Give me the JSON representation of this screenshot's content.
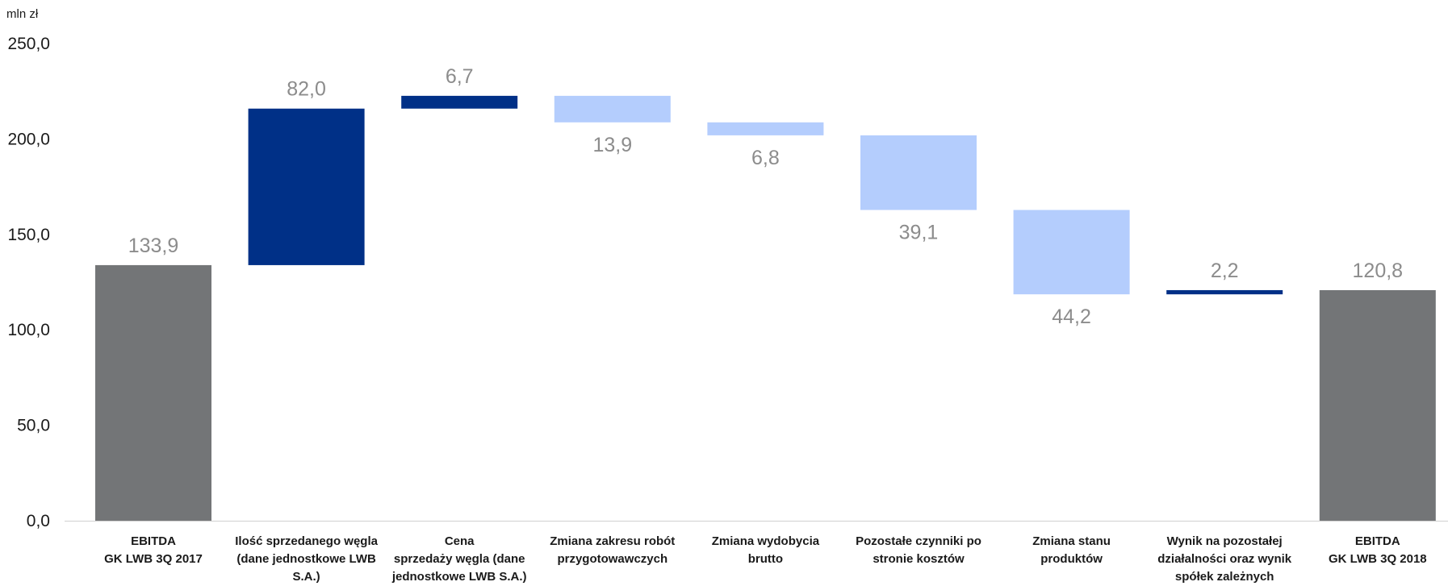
{
  "chart_data": {
    "type": "bar",
    "subtype": "waterfall",
    "unit_label": "mln zł",
    "ylim": [
      0,
      250
    ],
    "y_ticks": [
      "0,0",
      "50,0",
      "100,0",
      "150,0",
      "200,0",
      "250,0"
    ],
    "grid": false,
    "legend": "none",
    "colors": {
      "total": "#737577",
      "increase": "#003087",
      "decrease": "#b4cdfd",
      "value_label": "#8c8c8c"
    },
    "categories": [
      [
        "EBITDA",
        "GK LWB 3Q 2017"
      ],
      [
        "Ilość sprzedanego węgla",
        "(dane jednostkowe LWB",
        "S.A.)"
      ],
      [
        "Cena",
        "sprzedaży węgla (dane",
        "jednostkowe LWB S.A.)"
      ],
      [
        "Zmiana zakresu robót",
        "przygotowawczych"
      ],
      [
        "Zmiana wydobycia",
        "brutto"
      ],
      [
        "Pozostałe czynniki po",
        "stronie kosztów"
      ],
      [
        "Zmiana stanu",
        "produktów"
      ],
      [
        "Wynik na pozostałej",
        "działalności oraz wynik",
        "spółek zależnych"
      ],
      [
        "EBITDA",
        "GK LWB 3Q 2018"
      ]
    ],
    "bars": [
      {
        "kind": "total",
        "value": 133.9,
        "label": "133,9"
      },
      {
        "kind": "increase",
        "value": 82.0,
        "label": "82,0"
      },
      {
        "kind": "increase",
        "value": 6.7,
        "label": "6,7"
      },
      {
        "kind": "decrease",
        "value": 13.9,
        "label": "13,9"
      },
      {
        "kind": "decrease",
        "value": 6.8,
        "label": "6,8"
      },
      {
        "kind": "decrease",
        "value": 39.1,
        "label": "39,1"
      },
      {
        "kind": "decrease",
        "value": 44.2,
        "label": "44,2"
      },
      {
        "kind": "increase",
        "value": 2.2,
        "label": "2,2"
      },
      {
        "kind": "total",
        "value": 120.8,
        "label": "120,8"
      }
    ]
  }
}
